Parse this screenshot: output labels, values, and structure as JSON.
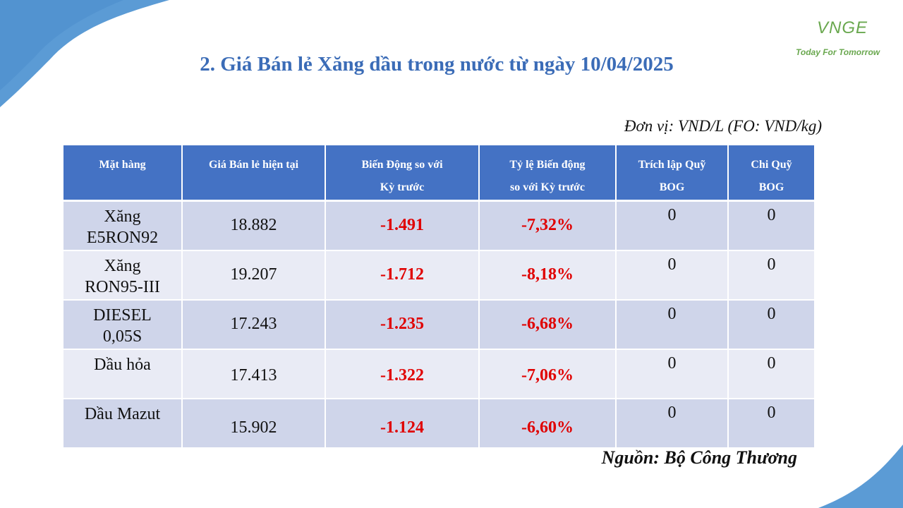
{
  "logo": {
    "mark": "VNGE",
    "tagline": "Today For Tomorrow"
  },
  "title": "2. Giá Bán lẻ Xăng dầu trong nước từ ngày 10/04/2025",
  "unit": "Đơn vị: VND/L (FO: VND/kg)",
  "table": {
    "headers": [
      {
        "line1": "Mặt hàng",
        "line2": ""
      },
      {
        "line1": "Giá Bán lẻ hiện tại",
        "line2": ""
      },
      {
        "line1": "Biến Động so với",
        "line2": "Kỳ trước"
      },
      {
        "line1": "Tỷ lệ Biến động",
        "line2": "so với Kỳ trước"
      },
      {
        "line1": "Trích lập Quỹ",
        "line2": "BOG"
      },
      {
        "line1": "Chi Quỹ",
        "line2": "BOG"
      }
    ],
    "rows": [
      {
        "name1": "Xăng",
        "name2": "E5RON92",
        "price": "18.882",
        "change": "-1.491",
        "pct": "-7,32%",
        "trich": "0",
        "chi": "0"
      },
      {
        "name1": "Xăng",
        "name2": "RON95-III",
        "price": "19.207",
        "change": "-1.712",
        "pct": "-8,18%",
        "trich": "0",
        "chi": "0"
      },
      {
        "name1": "DIESEL",
        "name2": "0,05S",
        "price": "17.243",
        "change": "-1.235",
        "pct": "-6,68%",
        "trich": "0",
        "chi": "0"
      },
      {
        "name1": "Dầu hỏa",
        "name2": "",
        "price": "17.413",
        "change": "-1.322",
        "pct": "-7,06%",
        "trich": "0",
        "chi": "0"
      },
      {
        "name1": "Dầu Mazut",
        "name2": "",
        "price": "15.902",
        "change": "-1.124",
        "pct": "-6,60%",
        "trich": "0",
        "chi": "0"
      }
    ]
  },
  "source": "Nguồn: Bộ Công Thương",
  "colors": {
    "accent": "#4472c4",
    "title": "#3b6cb7",
    "negative": "#e00000",
    "logo": "#6aa84f"
  }
}
